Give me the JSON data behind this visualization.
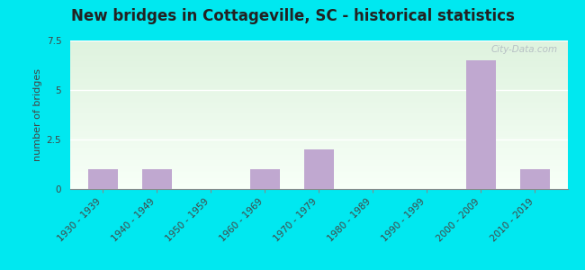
{
  "title": "New bridges in Cottageville, SC - historical statistics",
  "ylabel": "number of bridges",
  "categories": [
    "1930 - 1939",
    "1940 - 1949",
    "1950 - 1959",
    "1960 - 1969",
    "1970 - 1979",
    "1980 - 1989",
    "1990 - 1999",
    "2000 - 2009",
    "2010 - 2019"
  ],
  "values": [
    1,
    1,
    0,
    1,
    2,
    0,
    0,
    6.5,
    1
  ],
  "bar_color": "#c0a8d0",
  "ylim": [
    0,
    7.5
  ],
  "yticks": [
    0,
    2.5,
    5,
    7.5
  ],
  "outer_bg": "#00e8f0",
  "watermark": "City-Data.com",
  "title_fontsize": 12,
  "axis_label_fontsize": 8,
  "tick_fontsize": 7.5
}
